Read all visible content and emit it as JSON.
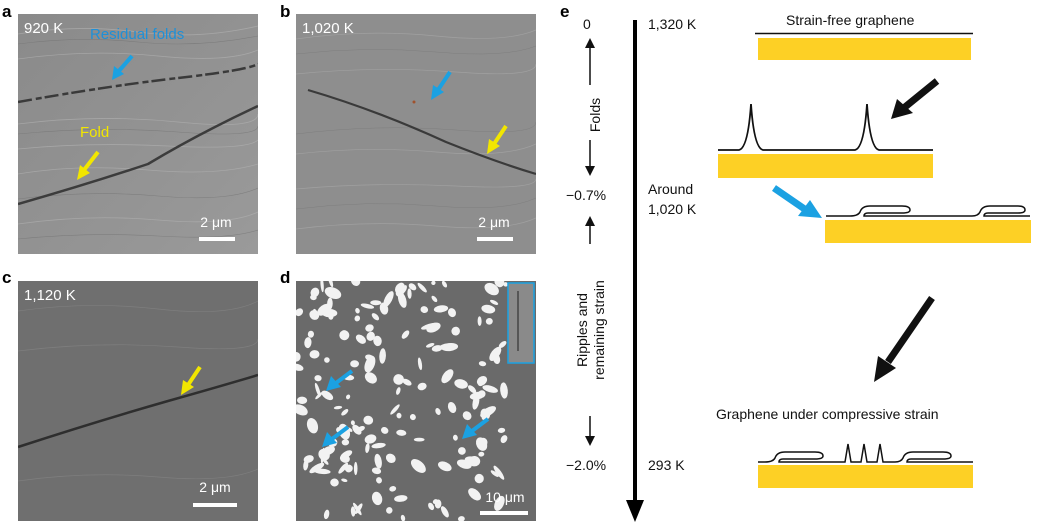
{
  "panels": {
    "a": {
      "letter": "a",
      "temperature": "920 K",
      "label_residual": "Residual folds",
      "label_fold": "Fold",
      "scale": "2 μm"
    },
    "b": {
      "letter": "b",
      "temperature": "1,020 K",
      "scale": "2 μm"
    },
    "c": {
      "letter": "c",
      "temperature": "1,120 K",
      "scale": "2 μm"
    },
    "d": {
      "letter": "d",
      "scale": "10 μm"
    },
    "e": {
      "letter": "e",
      "strain_top": "0",
      "strain_mid": "−0.7%",
      "strain_bottom": "−2.0%",
      "region_folds": "Folds",
      "region_ripples_line1": "Ripples and",
      "region_ripples_line2": "remaining strain",
      "temp_top": "1,320 K",
      "temp_mid_line1": "Around",
      "temp_mid_line2": "1,020 K",
      "temp_bottom": "293 K",
      "title_top": "Strain-free graphene",
      "title_bottom": "Graphene under compressive strain"
    }
  },
  "colors": {
    "arrow_blue": "#1ba1e2",
    "arrow_yellow": "#f2e600",
    "substrate": "#fdd025",
    "residual_label": "#1e90d8"
  }
}
